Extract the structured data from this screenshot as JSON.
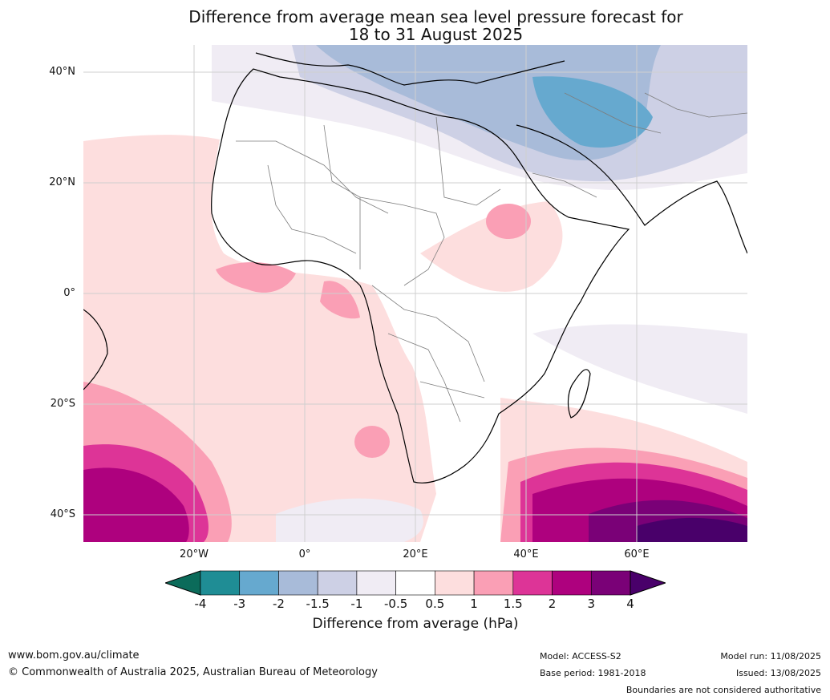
{
  "title_line1": "Difference from average mean sea level pressure forecast for",
  "title_line2": "18 to 31 August 2025",
  "lat_labels": [
    "40°N",
    "20°N",
    "0°",
    "20°S",
    "40°S"
  ],
  "lon_labels": [
    "20°W",
    "0°",
    "20°E",
    "40°E",
    "60°E"
  ],
  "legend": {
    "label": "Difference from average (hPa)",
    "ticks": [
      "-4",
      "-3",
      "-2",
      "-1.5",
      "-1",
      "-0.5",
      "0.5",
      "1",
      "1.5",
      "2",
      "3",
      "4"
    ],
    "colors": {
      "below_-4": "#0b6b5a",
      "-4_-3": "#1f8d95",
      "-3_-2": "#66a9cf",
      "-2_-1.5": "#a8bbd9",
      "-1.5_-1": "#cdd0e5",
      "-1_-0.5": "#f0ecf4",
      "-0.5_0.5": "#ffffff",
      "0.5_1": "#fddede",
      "1_1.5": "#fa9fb5",
      "1.5_2": "#dd3497",
      "2_3": "#ae017e",
      "3_4": "#7a0177",
      "above_4": "#49006a"
    }
  },
  "footer": {
    "website": "www.bom.gov.au/climate",
    "copyright": "© Commonwealth of Australia 2025, Australian Bureau of Meteorology",
    "model": "Model: ACCESS-S2",
    "base_period": "Base period: 1981-2018",
    "model_run": "Model run: 11/08/2025",
    "issued": "Issued: 13/08/2025",
    "disclaimer": "Boundaries are not considered authoritative"
  }
}
